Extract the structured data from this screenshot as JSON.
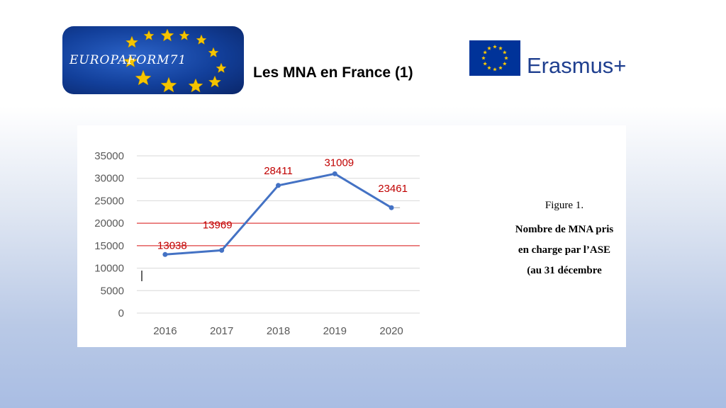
{
  "header": {
    "logo_text": "EUROPAFORM71",
    "title": "Les MNA en France (1)",
    "erasmus_label": "Erasmus+"
  },
  "colors": {
    "line": "#4472c4",
    "data_label": "#c00000",
    "reference_line": "#e04040",
    "gridline": "#d9d9d9",
    "eu_blue": "#003399",
    "eu_star": "#ffcc00"
  },
  "caption": {
    "figure": "Figure 1.",
    "description": "Nombre de MNA pris en charge par l’ASE (au 31 décembre"
  },
  "chart_data": {
    "type": "line",
    "title": "",
    "xlabel": "",
    "ylabel": "",
    "categories": [
      "2016",
      "2017",
      "2018",
      "2019",
      "2020"
    ],
    "series": [
      {
        "values": [
          13038,
          13969,
          28411,
          31009,
          23461
        ]
      }
    ],
    "data_labels": [
      "13038",
      "13969",
      "28411",
      "31009",
      "23461"
    ],
    "ylim": [
      0,
      35000
    ],
    "yticks": [
      0,
      5000,
      10000,
      15000,
      20000,
      25000,
      30000,
      35000
    ],
    "ytick_labels": [
      "0",
      "5000",
      "10000",
      "15000",
      "20000",
      "25000",
      "30000",
      "35000"
    ],
    "reference_lines": [
      15000,
      20000
    ],
    "grid": true,
    "legend": "none"
  }
}
